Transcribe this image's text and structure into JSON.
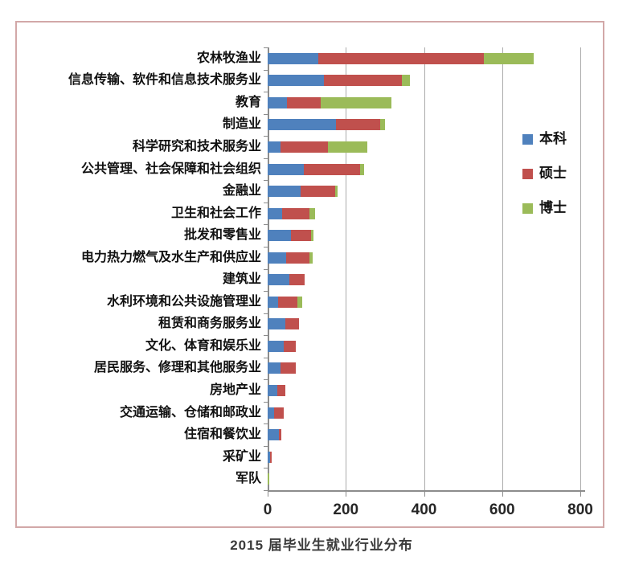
{
  "chart_data": {
    "type": "bar",
    "orientation": "horizontal",
    "stacked": true,
    "title": "2015 届毕业生就业行业分布",
    "categories": [
      "农林牧渔业",
      "信息传输、软件和信息技术服务业",
      "教育",
      "制造业",
      "科学研究和技术服务业",
      "公共管理、社会保障和社会组织",
      "金融业",
      "卫生和社会工作",
      "批发和零售业",
      "电力热力燃气及水生产和供应业",
      "建筑业",
      "水利环境和公共设施管理业",
      "租赁和商务服务业",
      "文化、体育和娱乐业",
      "居民服务、修理和其他服务业",
      "房地产业",
      "交通运输、仓储和邮政业",
      "住宿和餐饮业",
      "采矿业",
      "军队"
    ],
    "series": [
      {
        "name": "本科",
        "color": "#4F81BD",
        "values": [
          130,
          144,
          49,
          174,
          32,
          92,
          85,
          36,
          60,
          48,
          55,
          26,
          45,
          42,
          33,
          25,
          17,
          28,
          7,
          0
        ]
      },
      {
        "name": "硕士",
        "color": "#C0504D",
        "values": [
          423,
          200,
          87,
          113,
          123,
          145,
          88,
          71,
          52,
          58,
          40,
          50,
          35,
          29,
          38,
          20,
          25,
          8,
          4,
          0
        ]
      },
      {
        "name": "博士",
        "color": "#9BBB59",
        "values": [
          127,
          21,
          180,
          14,
          100,
          9,
          5,
          15,
          6,
          10,
          0,
          12,
          0,
          0,
          0,
          0,
          0,
          0,
          0,
          5
        ]
      }
    ],
    "xlim": [
      0,
      800
    ],
    "xticks": [
      0,
      200,
      400,
      600,
      800
    ],
    "grid": true,
    "legend_position": "right-inside"
  },
  "colors": {
    "frame_border": "#d2a8a8",
    "gridline": "#ababab",
    "axis": "#8c8c8c"
  }
}
